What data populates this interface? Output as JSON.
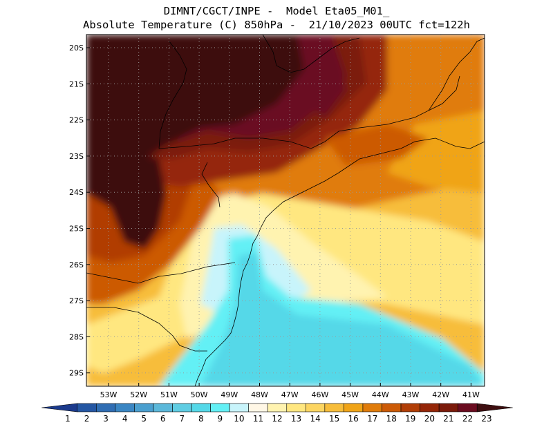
{
  "title_line1": "DIMNT/CGCT/INPE -  Model Eta05_M01_",
  "title_line2": "Absolute Temperature (C) 850hPa -  21/10/2023 00UTC fct=122h",
  "lat_labels": [
    "20S",
    "21S",
    "22S",
    "23S",
    "24S",
    "25S",
    "26S",
    "27S",
    "28S",
    "29S"
  ],
  "lon_labels": [
    "53W",
    "52W",
    "51W",
    "50W",
    "49W",
    "48W",
    "47W",
    "46W",
    "45W",
    "44W",
    "43W",
    "42W",
    "41W"
  ],
  "colorbar": {
    "labels": [
      "1",
      "2",
      "3",
      "4",
      "5",
      "6",
      "7",
      "8",
      "9",
      "10",
      "11",
      "12",
      "13",
      "14",
      "15",
      "16",
      "17",
      "18",
      "19",
      "20",
      "21",
      "22",
      "23"
    ],
    "colors": [
      "#1b3a8c",
      "#2456a3",
      "#2f6db3",
      "#3a86c3",
      "#4a9fcf",
      "#5bb8da",
      "#5fcde3",
      "#54d8e8",
      "#63f0f5",
      "#c8f4fb",
      "#fff7e6",
      "#fff3b0",
      "#ffe780",
      "#fcd561",
      "#f7bd3a",
      "#f0a417",
      "#e07c0a",
      "#cc5a06",
      "#b13e06",
      "#952608",
      "#7b1a0a",
      "#6b0c20",
      "#3e0e10"
    ]
  },
  "map_colors": {
    "darkest": "#3e0e10",
    "maroon": "#6b0c20",
    "red_brown": "#7b1a0a",
    "dark_orange": "#952608",
    "rust": "#b13e06",
    "orange_red": "#cc5a06",
    "orange": "#e07c0a",
    "amber": "#f0a417",
    "gold": "#f7bd3a",
    "yellow": "#fcd561",
    "light_yellow": "#ffe780",
    "pale_yellow": "#fff3b0",
    "cream": "#fff7e6",
    "pale_cyan": "#c8f4fb",
    "cyan": "#63f0f5",
    "teal": "#54d8e8",
    "deep_teal": "#5fcde3"
  }
}
